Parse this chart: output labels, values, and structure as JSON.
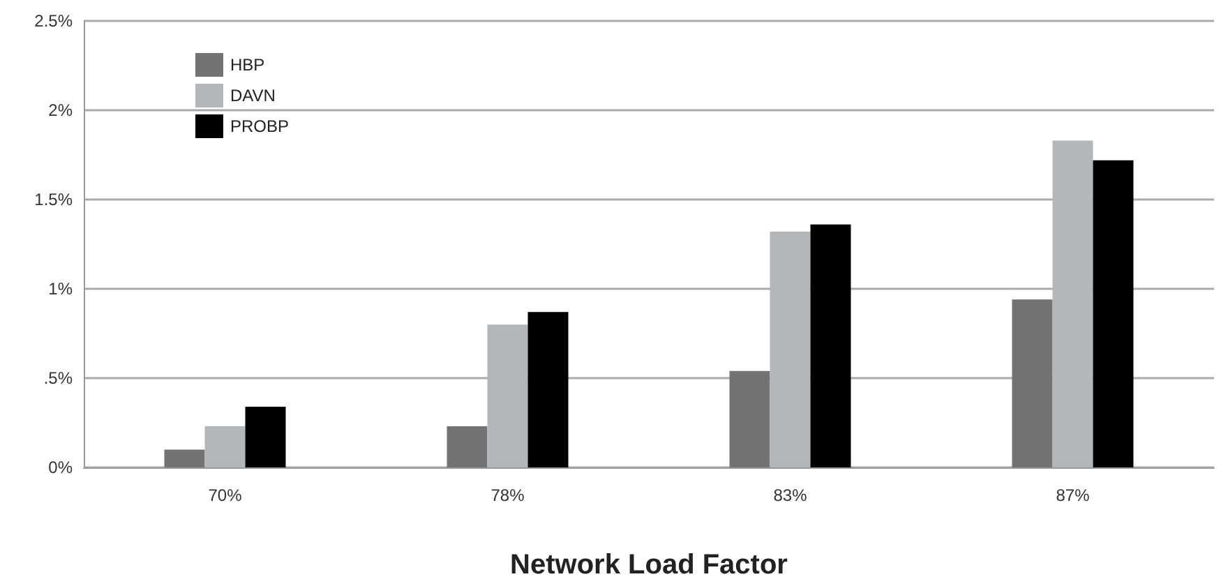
{
  "chart_data": {
    "type": "bar",
    "xlabel": "Network Load Factor",
    "categories": [
      "70%",
      "78%",
      "83%",
      "87%"
    ],
    "series": [
      {
        "name": "HBP",
        "color": "#737373",
        "values": [
          0.1,
          0.23,
          0.54,
          0.94
        ]
      },
      {
        "name": "DAVN",
        "color": "#b3b7b9",
        "values": [
          0.23,
          0.8,
          1.32,
          1.83
        ]
      },
      {
        "name": "PROBP",
        "color": "#000000",
        "values": [
          0.34,
          0.87,
          1.36,
          1.72
        ]
      }
    ],
    "ylim": [
      0,
      2.5
    ],
    "yticks": [
      {
        "value": 0,
        "label": "0%"
      },
      {
        "value": 0.5,
        "label": ".5%"
      },
      {
        "value": 1,
        "label": "1%"
      },
      {
        "value": 1.5,
        "label": "1.5%"
      },
      {
        "value": 2,
        "label": "2%"
      },
      {
        "value": 2.5,
        "label": "2.5%"
      }
    ],
    "grid": "y",
    "legend": "top left"
  }
}
